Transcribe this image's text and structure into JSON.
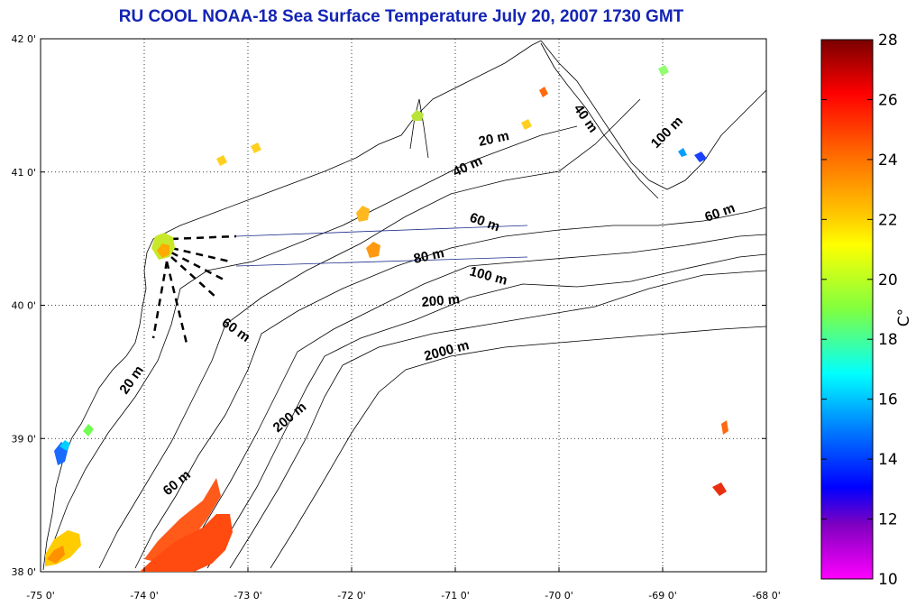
{
  "title": "RU COOL  NOAA-18 Sea Surface Temperature July 20, 2007 1730 GMT",
  "map": {
    "lon_range": [
      -75,
      -68
    ],
    "lat_range": [
      38,
      42
    ],
    "lon_ticks": [
      "-75 0'",
      "-74 0'",
      "-73 0'",
      "-72 0'",
      "-71 0'",
      "-70 0'",
      "-69 0'",
      "-68 0'"
    ],
    "lat_ticks": [
      "42 0'",
      "41 0'",
      "40 0'",
      "39 0'",
      "38 0'"
    ],
    "contour_labels": [
      "20 m",
      "40 m",
      "40 m",
      "100 m",
      "60 m",
      "60 m",
      "80 m",
      "100 m",
      "200 m",
      "2000 m",
      "60 m",
      "20 m",
      "200 m",
      "60 m"
    ]
  },
  "colorbar": {
    "ticks": [
      "28",
      "26",
      "24",
      "22",
      "20",
      "18",
      "16",
      "14",
      "12",
      "10"
    ],
    "unit": "C°",
    "colors": [
      "#800000",
      "#ff0000",
      "#ff8000",
      "#ffff00",
      "#80ff40",
      "#00ffff",
      "#0080ff",
      "#0000ff",
      "#8000c0",
      "#ff00ff"
    ]
  }
}
